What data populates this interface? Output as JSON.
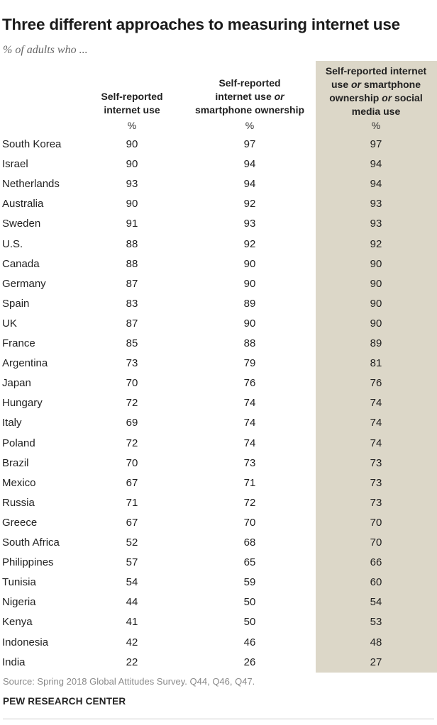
{
  "title": "Three different approaches to measuring internet use",
  "subtitle": "% of adults who ...",
  "columns": [
    {
      "label_plain": "Self-reported internet use",
      "pct": "%"
    },
    {
      "label_plain": "Self-reported internet use or smartphone ownership",
      "pct": "%"
    },
    {
      "label_plain": "Self-reported internet use or smartphone ownership or social media use",
      "pct": "%"
    }
  ],
  "column_labels": {
    "c1_line1": "Self-reported",
    "c1_line2": "internet use",
    "c2_line1": "Self-reported",
    "c2_line2a": "internet use ",
    "c2_line2b": "or",
    "c2_line3": "smartphone ownership",
    "c3_line1": "Self-reported internet",
    "c3_line2a": "use ",
    "c3_line2b": "or",
    "c3_line2c": " smartphone",
    "c3_line3a": "ownership ",
    "c3_line3b": "or",
    "c3_line3c": " social",
    "c3_line4": "media use"
  },
  "chart_data": {
    "type": "table",
    "title": "Three different approaches to measuring internet use",
    "subtitle": "% of adults who ...",
    "highlight_column": 2,
    "rows": [
      {
        "country": "South Korea",
        "values": [
          90,
          97,
          97
        ]
      },
      {
        "country": "Israel",
        "values": [
          90,
          94,
          94
        ]
      },
      {
        "country": "Netherlands",
        "values": [
          93,
          94,
          94
        ]
      },
      {
        "country": "Australia",
        "values": [
          90,
          92,
          93
        ]
      },
      {
        "country": "Sweden",
        "values": [
          91,
          93,
          93
        ]
      },
      {
        "country": "U.S.",
        "values": [
          88,
          92,
          92
        ]
      },
      {
        "country": "Canada",
        "values": [
          88,
          90,
          90
        ]
      },
      {
        "country": "Germany",
        "values": [
          87,
          90,
          90
        ]
      },
      {
        "country": "Spain",
        "values": [
          83,
          89,
          90
        ]
      },
      {
        "country": "UK",
        "values": [
          87,
          90,
          90
        ]
      },
      {
        "country": "France",
        "values": [
          85,
          88,
          89
        ]
      },
      {
        "country": "Argentina",
        "values": [
          73,
          79,
          81
        ]
      },
      {
        "country": "Japan",
        "values": [
          70,
          76,
          76
        ]
      },
      {
        "country": "Hungary",
        "values": [
          72,
          74,
          74
        ]
      },
      {
        "country": "Italy",
        "values": [
          69,
          74,
          74
        ]
      },
      {
        "country": "Poland",
        "values": [
          72,
          74,
          74
        ]
      },
      {
        "country": "Brazil",
        "values": [
          70,
          73,
          73
        ]
      },
      {
        "country": "Mexico",
        "values": [
          67,
          71,
          73
        ]
      },
      {
        "country": "Russia",
        "values": [
          71,
          72,
          73
        ]
      },
      {
        "country": "Greece",
        "values": [
          67,
          70,
          70
        ]
      },
      {
        "country": "South Africa",
        "values": [
          52,
          68,
          70
        ]
      },
      {
        "country": "Philippines",
        "values": [
          57,
          65,
          66
        ]
      },
      {
        "country": "Tunisia",
        "values": [
          54,
          59,
          60
        ]
      },
      {
        "country": "Nigeria",
        "values": [
          44,
          50,
          54
        ]
      },
      {
        "country": "Kenya",
        "values": [
          41,
          50,
          53
        ]
      },
      {
        "country": "Indonesia",
        "values": [
          42,
          46,
          48
        ]
      },
      {
        "country": "India",
        "values": [
          22,
          26,
          27
        ]
      }
    ]
  },
  "source": "Source: Spring 2018 Global Attitudes Survey. Q44, Q46, Q47.",
  "brand": "PEW RESEARCH CENTER",
  "colors": {
    "highlight": "#dcd7c8",
    "text": "#222222",
    "source": "#8a8a8a"
  }
}
